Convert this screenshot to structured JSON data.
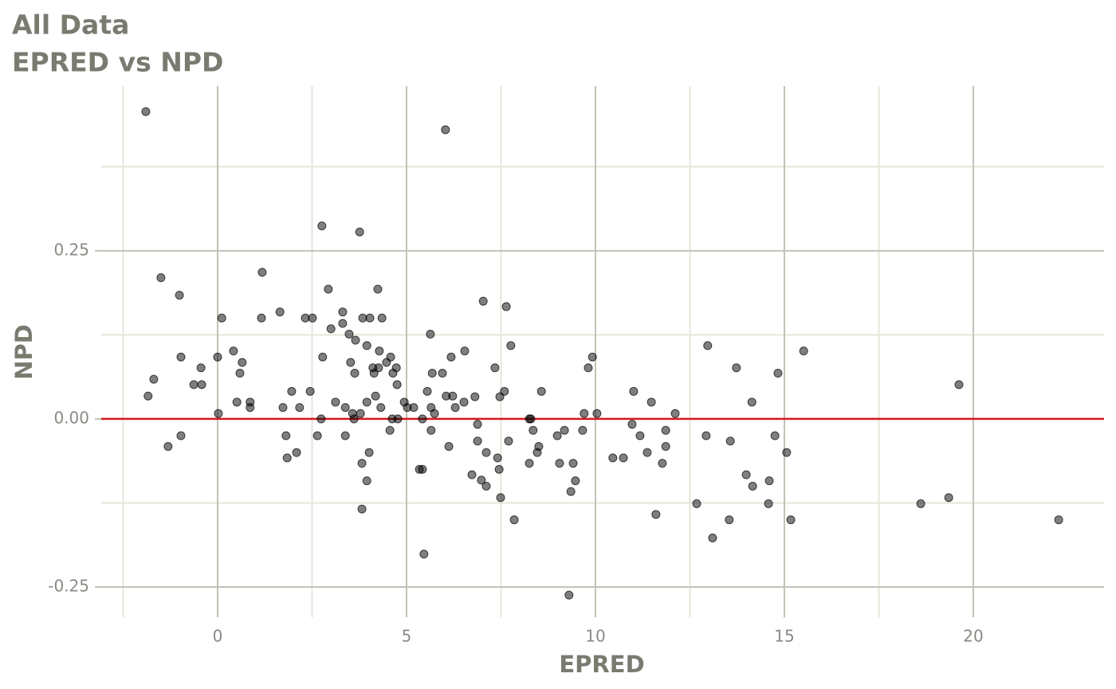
{
  "chart_data": {
    "type": "scatter",
    "title": "All Data",
    "subtitle": "EPRED vs NPD",
    "x_label": "EPRED",
    "y_label": "NPD",
    "xlim": [
      -3.08,
      23.46
    ],
    "ylim": [
      -0.295,
      0.495
    ],
    "xticks": [
      0,
      5,
      10,
      15,
      20
    ],
    "yticks": [
      -0.25,
      {
        "value": 0,
        "label": "0.00"
      },
      0.25
    ],
    "xminor": [
      -2.5,
      2.5,
      7.5,
      12.5,
      17.5
    ],
    "yminor": [
      -0.125,
      0.125,
      0.375
    ],
    "grid": true,
    "hline": {
      "value": 0,
      "color": "#d7191c"
    },
    "series": [
      {
        "color": "#000000",
        "x": [
          -1.9,
          6.03,
          2.76,
          3.76,
          1.18,
          -1.5,
          -1.01,
          2.93,
          4.24,
          7.03,
          7.64,
          1.65,
          3.31,
          0.11,
          1.16,
          2.32,
          2.51,
          3.84,
          4.03,
          4.35,
          3.0,
          3.31,
          3.48,
          5.63,
          3.65,
          3.95,
          7.76,
          4.28,
          6.54,
          0.42,
          15.51,
          12.97,
          -0.97,
          0,
          2.78,
          4.58,
          6.18,
          9.92,
          0.65,
          3.52,
          4.47,
          -0.44,
          4.11,
          4.26,
          4.73,
          7.34,
          9.81,
          13.73,
          -1.69,
          0.59,
          3.63,
          4.14,
          4.64,
          5.68,
          5.95,
          14.83,
          -0.63,
          -0.42,
          4.75,
          19.62,
          -1.84,
          1.96,
          2.45,
          5.55,
          7.59,
          8.57,
          11.01,
          4.18,
          6.05,
          6.22,
          6.81,
          7.47,
          0.86,
          0.51,
          3.12,
          3.95,
          4.94,
          6.52,
          11.48,
          14.14,
          1.73,
          0.86,
          2.17,
          3.38,
          4.32,
          5.02,
          5.19,
          5.65,
          6.29,
          0.02,
          3.57,
          3.78,
          5.74,
          9.7,
          10.04,
          12.11,
          2.74,
          3.61,
          4.62,
          4.77,
          5.42,
          8.25,
          8.29,
          6.88,
          10.97,
          4.56,
          5.65,
          8.35,
          11.86,
          -0.97,
          1.81,
          2.64,
          3.38,
          8.99,
          9.66,
          9.18,
          11.18,
          12.93,
          14.75,
          -1.31,
          2.09,
          4.01,
          6.12,
          6.88,
          7.11,
          7.7,
          8.5,
          13.57,
          11.37,
          11.86,
          15.06,
          8.46,
          1.84,
          3.82,
          7.41,
          8.25,
          9.05,
          9.41,
          10.46,
          10.74,
          11.77,
          5.34,
          5.42,
          7.45,
          6.73,
          6.98,
          13.99,
          3.95,
          9.47,
          14.6,
          7.11,
          14.16,
          9.35,
          7.49,
          19.35,
          3.82,
          12.68,
          14.58,
          18.61,
          11.6,
          7.85,
          13.54,
          15.17,
          22.26,
          13.1,
          5.46,
          9.3
        ],
        "values": [
          0.457,
          0.43,
          0.287,
          0.278,
          0.218,
          0.21,
          0.184,
          0.193,
          0.193,
          0.175,
          0.167,
          0.159,
          0.159,
          0.15,
          0.15,
          0.15,
          0.15,
          0.15,
          0.15,
          0.15,
          0.134,
          0.142,
          0.126,
          0.126,
          0.117,
          0.109,
          0.109,
          0.101,
          0.101,
          0.101,
          0.101,
          0.109,
          0.092,
          0.092,
          0.092,
          0.092,
          0.092,
          0.092,
          0.084,
          0.084,
          0.084,
          0.076,
          0.076,
          0.076,
          0.076,
          0.076,
          0.076,
          0.076,
          0.059,
          0.068,
          0.068,
          0.068,
          0.068,
          0.068,
          0.068,
          0.068,
          0.051,
          0.051,
          0.051,
          0.051,
          0.034,
          0.041,
          0.041,
          0.041,
          0.041,
          0.041,
          0.041,
          0.034,
          0.034,
          0.034,
          0.033,
          0.033,
          0.025,
          0.025,
          0.025,
          0.025,
          0.025,
          0.025,
          0.025,
          0.025,
          0.017,
          0.017,
          0.017,
          0.017,
          0.017,
          0.017,
          0.017,
          0.017,
          0.017,
          0.008,
          0.008,
          0.008,
          0.008,
          0.008,
          0.008,
          0.008,
          0,
          0,
          0,
          0,
          0,
          0,
          0,
          -0.008,
          -0.008,
          -0.017,
          -0.017,
          -0.017,
          -0.017,
          -0.025,
          -0.025,
          -0.025,
          -0.025,
          -0.025,
          -0.017,
          -0.017,
          -0.025,
          -0.025,
          -0.025,
          -0.041,
          -0.05,
          -0.05,
          -0.041,
          -0.033,
          -0.05,
          -0.033,
          -0.041,
          -0.033,
          -0.05,
          -0.041,
          -0.05,
          -0.05,
          -0.058,
          -0.066,
          -0.058,
          -0.066,
          -0.066,
          -0.066,
          -0.058,
          -0.058,
          -0.066,
          -0.075,
          -0.075,
          -0.075,
          -0.083,
          -0.091,
          -0.083,
          -0.092,
          -0.092,
          -0.092,
          -0.1,
          -0.1,
          -0.108,
          -0.117,
          -0.117,
          -0.134,
          -0.126,
          -0.126,
          -0.126,
          -0.142,
          -0.15,
          -0.15,
          -0.15,
          -0.15,
          -0.177,
          -0.201,
          -0.262
        ]
      }
    ]
  }
}
